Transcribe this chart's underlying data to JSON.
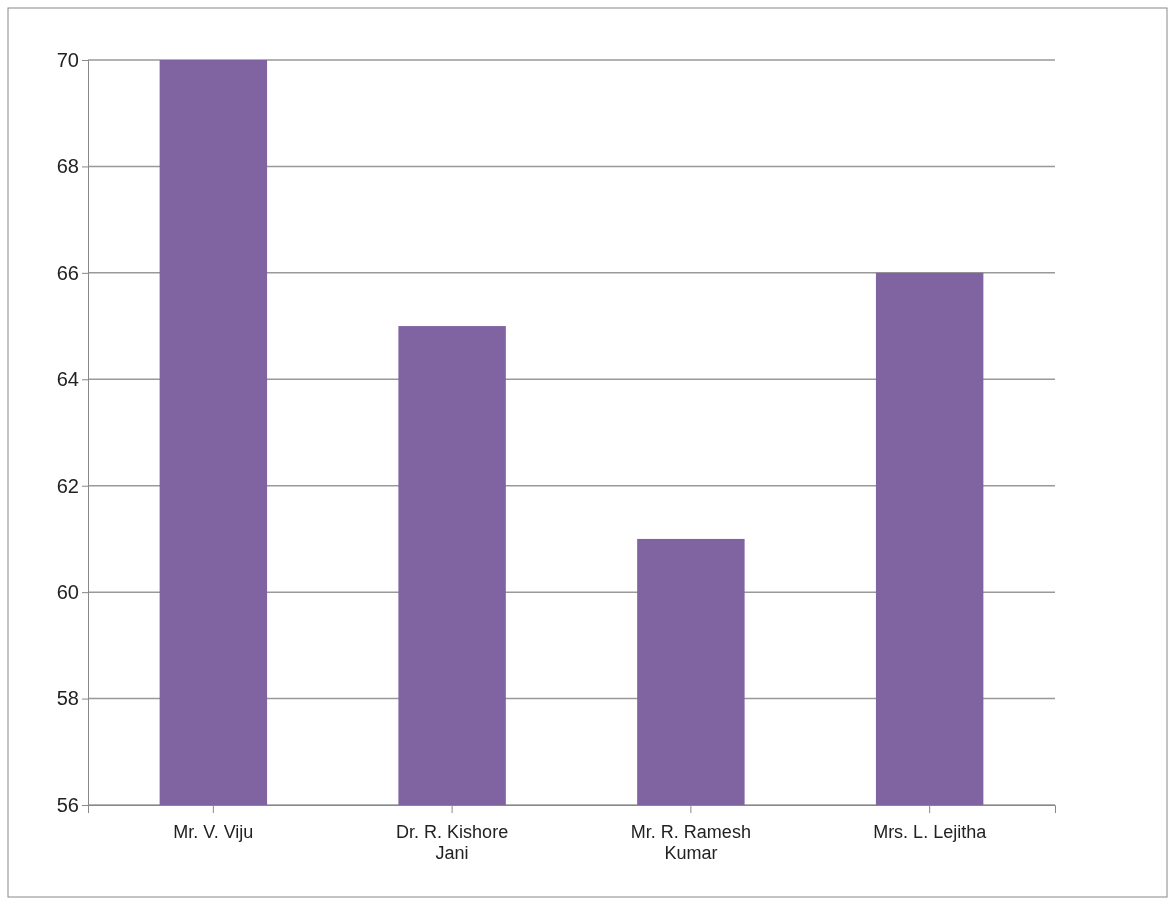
{
  "chart_data": {
    "type": "bar",
    "categories": [
      "Mr. V. Viju",
      "Dr. R. Kishore Jani",
      "Mr. R. Ramesh Kumar",
      "Mrs. L. Lejitha"
    ],
    "values": [
      70,
      65,
      61,
      66
    ],
    "color": "#8064a2",
    "ylim": [
      56,
      70
    ],
    "yticks": [
      56,
      58,
      60,
      62,
      64,
      66,
      68,
      70
    ],
    "grid": "y"
  }
}
